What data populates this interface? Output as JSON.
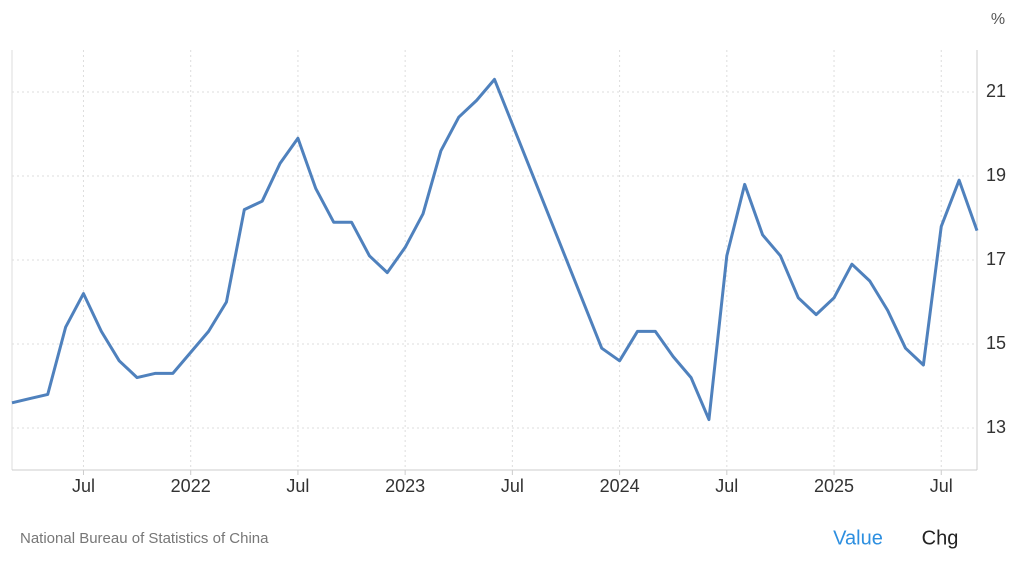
{
  "chart_data": {
    "type": "line",
    "unit": "%",
    "x": [
      "2021-03",
      "2021-04",
      "2021-05",
      "2021-06",
      "2021-07",
      "2021-08",
      "2021-09",
      "2021-10",
      "2021-11",
      "2021-12",
      "2022-01",
      "2022-02",
      "2022-03",
      "2022-04",
      "2022-05",
      "2022-06",
      "2022-07",
      "2022-08",
      "2022-09",
      "2022-10",
      "2022-11",
      "2022-12",
      "2023-01",
      "2023-02",
      "2023-03",
      "2023-04",
      "2023-05",
      "2023-06",
      "2023-12",
      "2024-01",
      "2024-02",
      "2024-03",
      "2024-04",
      "2024-05",
      "2024-06",
      "2024-07",
      "2024-08",
      "2024-09",
      "2024-10",
      "2024-11",
      "2024-12",
      "2025-01",
      "2025-02",
      "2025-03",
      "2025-04",
      "2025-05",
      "2025-06",
      "2025-07",
      "2025-08",
      "2025-09"
    ],
    "values": [
      13.6,
      13.7,
      13.8,
      15.4,
      16.2,
      15.3,
      14.6,
      14.2,
      14.3,
      14.3,
      14.8,
      15.3,
      16.0,
      18.2,
      18.4,
      19.3,
      19.9,
      18.7,
      17.9,
      17.9,
      17.1,
      16.7,
      17.3,
      18.1,
      19.6,
      20.4,
      20.8,
      21.3,
      14.9,
      14.6,
      15.3,
      15.3,
      14.7,
      14.2,
      13.2,
      17.1,
      18.8,
      17.6,
      17.1,
      16.1,
      15.7,
      16.1,
      16.9,
      16.5,
      15.8,
      14.9,
      14.5,
      17.8,
      18.9,
      17.7
    ],
    "color": "#4f81bd",
    "xlim": [
      "2021-03",
      "2025-09"
    ],
    "xticks": [
      {
        "value": "2021-07",
        "label": "Jul"
      },
      {
        "value": "2022-01",
        "label": "2022"
      },
      {
        "value": "2022-07",
        "label": "Jul"
      },
      {
        "value": "2023-01",
        "label": "2023"
      },
      {
        "value": "2023-07",
        "label": "Jul"
      },
      {
        "value": "2024-01",
        "label": "2024"
      },
      {
        "value": "2024-07",
        "label": "Jul"
      },
      {
        "value": "2025-01",
        "label": "2025"
      },
      {
        "value": "2025-07",
        "label": "Jul"
      }
    ],
    "ylim": [
      12,
      22
    ],
    "yticks": [
      13,
      15,
      17,
      19,
      21
    ],
    "grid": true
  },
  "footer": {
    "source": "National Bureau of Statistics of China",
    "tabs": [
      "Value",
      "Chg"
    ]
  }
}
